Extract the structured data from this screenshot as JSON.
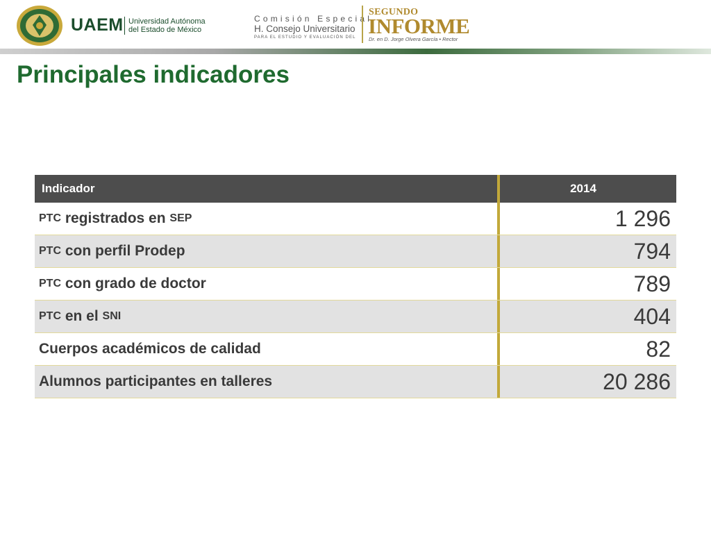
{
  "header": {
    "logo_text": "UAEM",
    "university_line1": "Universidad Autónoma",
    "university_line2": "del Estado de México",
    "comision_line1": "Comisión Especial",
    "comision_line2": "H. Consejo Universitario",
    "comision_line3": "PARA EL ESTUDIO Y EVALUACIÓN DEL",
    "segundo": "SEGUNDO",
    "informe": "INFORME",
    "rector": "Dr. en D. Jorge Olvera García • Rector"
  },
  "title": "Principales indicadores",
  "table": {
    "headers": [
      "Indicador",
      "2014"
    ],
    "rows": [
      {
        "pre": "PTC",
        "label": " registrados en ",
        "post": "SEP",
        "value": "1 296"
      },
      {
        "pre": "PTC",
        "label": " con perfil Prodep",
        "post": "",
        "value": "794"
      },
      {
        "pre": "PTC",
        "label": " con grado de doctor",
        "post": "",
        "value": "789"
      },
      {
        "pre": "PTC",
        "label": " en el ",
        "post": "SNI",
        "value": "404"
      },
      {
        "pre": "",
        "label": "Cuerpos académicos de calidad",
        "post": "",
        "value": "82"
      },
      {
        "pre": "",
        "label": "Alumnos participantes en talleres",
        "post": "",
        "value": "20 286"
      }
    ]
  },
  "colors": {
    "title_green": "#1f6a2f",
    "header_gray": "#4d4d4d",
    "gold_separator": "#c2a93a",
    "row_alt": "#e2e2e2"
  }
}
